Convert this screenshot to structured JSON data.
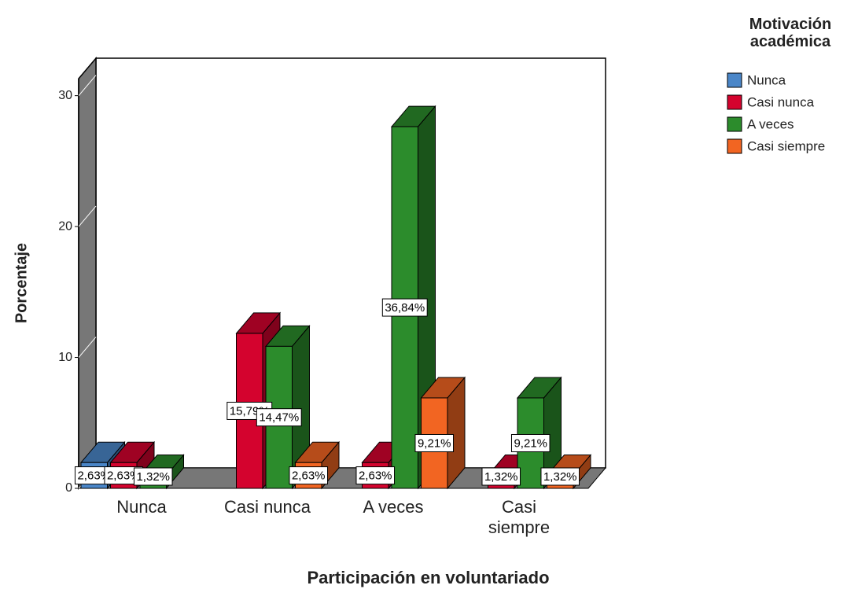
{
  "chart_data": {
    "type": "bar3d",
    "y_label": "Porcentaje",
    "x_label": "Participación en voluntariado",
    "legend_title": "Motivación académica",
    "categories": [
      "Nunca",
      "Casi nunca",
      "A veces",
      "Casi siempre"
    ],
    "ylim": [
      0,
      31.3
    ],
    "yticks": [
      0,
      10,
      20,
      30
    ],
    "series": [
      {
        "name": "Nunca",
        "color": "#4a86c8",
        "values": [
          1.97,
          null,
          null,
          null
        ],
        "labels": [
          "2,63%",
          null,
          null,
          null
        ]
      },
      {
        "name": "Casi nunca",
        "color": "#d4032e",
        "values": [
          1.97,
          11.84,
          1.97,
          0.99
        ],
        "labels": [
          "2,63%",
          "15,79%",
          "2,63%",
          "1,32%"
        ]
      },
      {
        "name": "A veces",
        "color": "#2c8c2c",
        "values": [
          0.99,
          10.85,
          27.63,
          6.91
        ],
        "labels": [
          "1,32%",
          "14,47%",
          "36,84%",
          "9,21%"
        ]
      },
      {
        "name": "Casi siempre",
        "color": "#f26522",
        "values": [
          null,
          1.97,
          6.91,
          0.99
        ],
        "labels": [
          null,
          "2,63%",
          "9,21%",
          "1,32%"
        ]
      }
    ]
  }
}
